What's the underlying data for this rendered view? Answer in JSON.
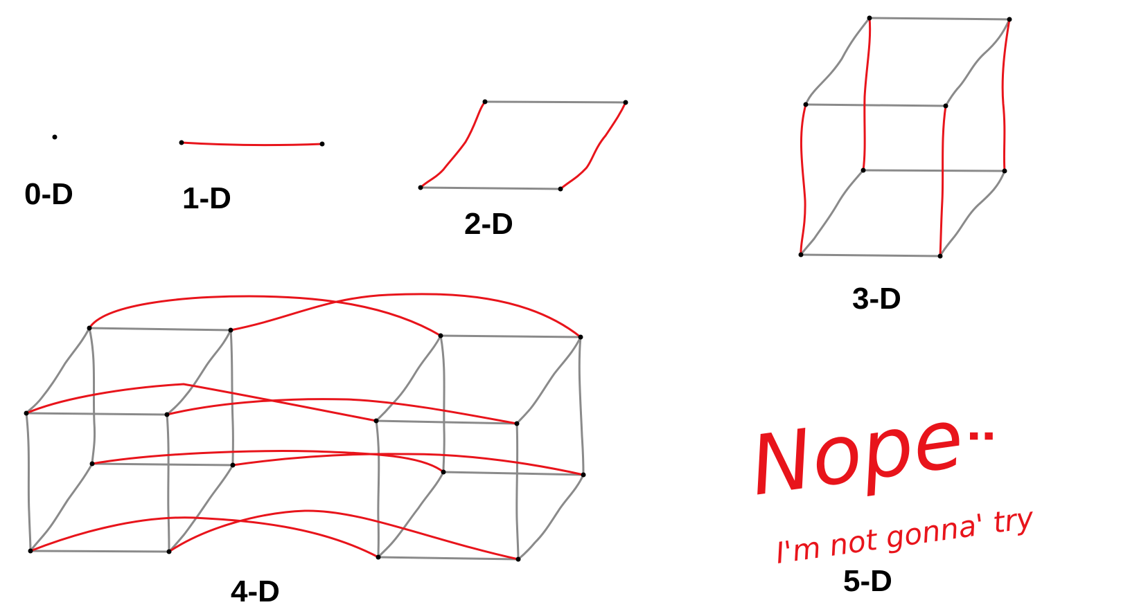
{
  "labels": {
    "d0": "0-D",
    "d1": "1-D",
    "d2": "2-D",
    "d3": "3-D",
    "d4": "4-D",
    "d5": "5-D"
  },
  "note": {
    "nope": "Nope",
    "face": ":",
    "subtext": "I'm not gonna' try"
  },
  "colors": {
    "red_edge": "#e8141b",
    "grey_edge": "#8a8a8a",
    "vertex": "#000000",
    "background": "#ffffff"
  }
}
